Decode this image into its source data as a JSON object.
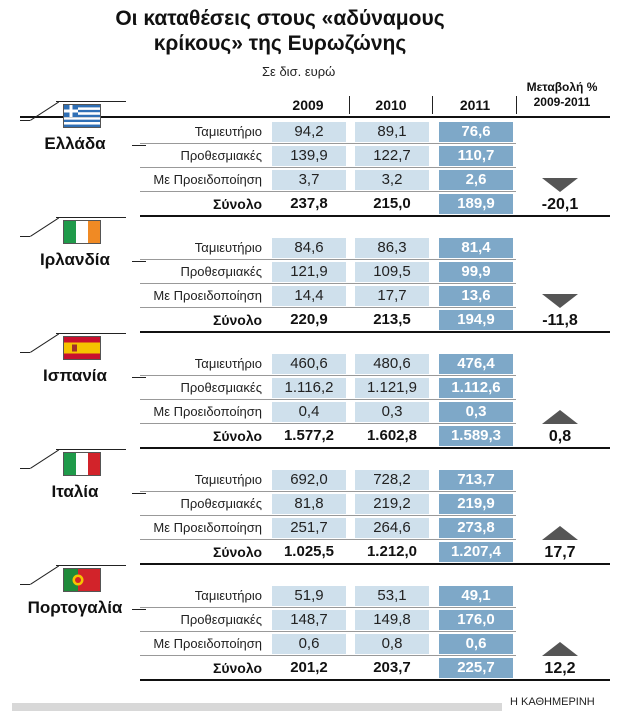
{
  "title_line1": "Οι καταθέσεις στους «αδύναμους",
  "title_line2": "κρίκους» της Ευρωζώνης",
  "subtitle": "Σε δισ. ευρώ",
  "change_header_line1": "Μεταβολή %",
  "change_header_line2": "2009-2011",
  "source": "Η ΚΑΘΗΜΕΡΙΝΗ",
  "colors": {
    "cell_light": "#cfe0ec",
    "cell_2011": "#7ea8c8",
    "arrow": "#555555"
  },
  "chart_data": {
    "type": "table",
    "title": "Οι καταθέσεις στους «αδύναμους κρίκους» της Ευρωζώνης",
    "unit": "Σε δισ. ευρώ",
    "columns": [
      "2009",
      "2010",
      "2011"
    ],
    "change_column": "Μεταβολή % 2009-2011",
    "row_labels": [
      "Ταμιευτήριο",
      "Προθεσμιακές",
      "Με Προειδοποίηση",
      "Σύνολο"
    ],
    "countries": [
      {
        "name": "Ελλάδα",
        "flag": "greece-flag",
        "direction": "down",
        "change": "-20,1",
        "rows": [
          [
            "94,2",
            "89,1",
            "76,6"
          ],
          [
            "139,9",
            "122,7",
            "110,7"
          ],
          [
            "3,7",
            "3,2",
            "2,6"
          ],
          [
            "237,8",
            "215,0",
            "189,9"
          ]
        ]
      },
      {
        "name": "Ιρλανδία",
        "flag": "ireland-flag",
        "direction": "down",
        "change": "-11,8",
        "rows": [
          [
            "84,6",
            "86,3",
            "81,4"
          ],
          [
            "121,9",
            "109,5",
            "99,9"
          ],
          [
            "14,4",
            "17,7",
            "13,6"
          ],
          [
            "220,9",
            "213,5",
            "194,9"
          ]
        ]
      },
      {
        "name": "Ισπανία",
        "flag": "spain-flag",
        "direction": "up",
        "change": "0,8",
        "rows": [
          [
            "460,6",
            "480,6",
            "476,4"
          ],
          [
            "1.116,2",
            "1.121,9",
            "1.112,6"
          ],
          [
            "0,4",
            "0,3",
            "0,3"
          ],
          [
            "1.577,2",
            "1.602,8",
            "1.589,3"
          ]
        ]
      },
      {
        "name": "Ιταλία",
        "flag": "italy-flag",
        "direction": "up",
        "change": "17,7",
        "rows": [
          [
            "692,0",
            "728,2",
            "713,7"
          ],
          [
            "81,8",
            "219,2",
            "219,9"
          ],
          [
            "251,7",
            "264,6",
            "273,8"
          ],
          [
            "1.025,5",
            "1.212,0",
            "1.207,4"
          ]
        ]
      },
      {
        "name": "Πορτογαλία",
        "flag": "portugal-flag",
        "direction": "up",
        "change": "12,2",
        "rows": [
          [
            "51,9",
            "53,1",
            "49,1"
          ],
          [
            "148,7",
            "149,8",
            "176,0"
          ],
          [
            "0,6",
            "0,8",
            "0,6"
          ],
          [
            "201,2",
            "203,7",
            "225,7"
          ]
        ]
      }
    ]
  }
}
